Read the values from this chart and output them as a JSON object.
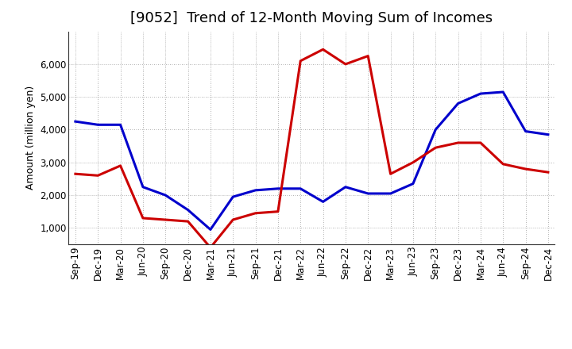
{
  "title": "[9052]  Trend of 12-Month Moving Sum of Incomes",
  "ylabel": "Amount (million yen)",
  "xlabels": [
    "Sep-19",
    "Dec-19",
    "Mar-20",
    "Jun-20",
    "Sep-20",
    "Dec-20",
    "Mar-21",
    "Jun-21",
    "Sep-21",
    "Dec-21",
    "Mar-22",
    "Jun-22",
    "Sep-22",
    "Dec-22",
    "Mar-23",
    "Jun-23",
    "Sep-23",
    "Dec-23",
    "Mar-24",
    "Jun-24",
    "Sep-24",
    "Dec-24"
  ],
  "ordinary_income": [
    4250,
    4150,
    4150,
    2250,
    2000,
    1550,
    950,
    1950,
    2150,
    2200,
    2200,
    1800,
    2250,
    2050,
    2050,
    2350,
    4000,
    4800,
    5100,
    5150,
    3950,
    3850
  ],
  "net_income": [
    2650,
    2600,
    2900,
    1300,
    1250,
    1200,
    400,
    1250,
    1450,
    1500,
    6100,
    6450,
    6000,
    6250,
    2650,
    3000,
    3450,
    3600,
    3600,
    2950,
    2800,
    2700
  ],
  "ordinary_income_color": "#0000cc",
  "net_income_color": "#cc0000",
  "ylim": [
    500,
    7000
  ],
  "yticks": [
    1000,
    2000,
    3000,
    4000,
    5000,
    6000
  ],
  "background_color": "#ffffff",
  "grid_color": "#aaaaaa",
  "linewidth": 2.2,
  "title_fontsize": 13,
  "legend_fontsize": 10,
  "tick_fontsize": 8.5,
  "ylabel_fontsize": 9
}
